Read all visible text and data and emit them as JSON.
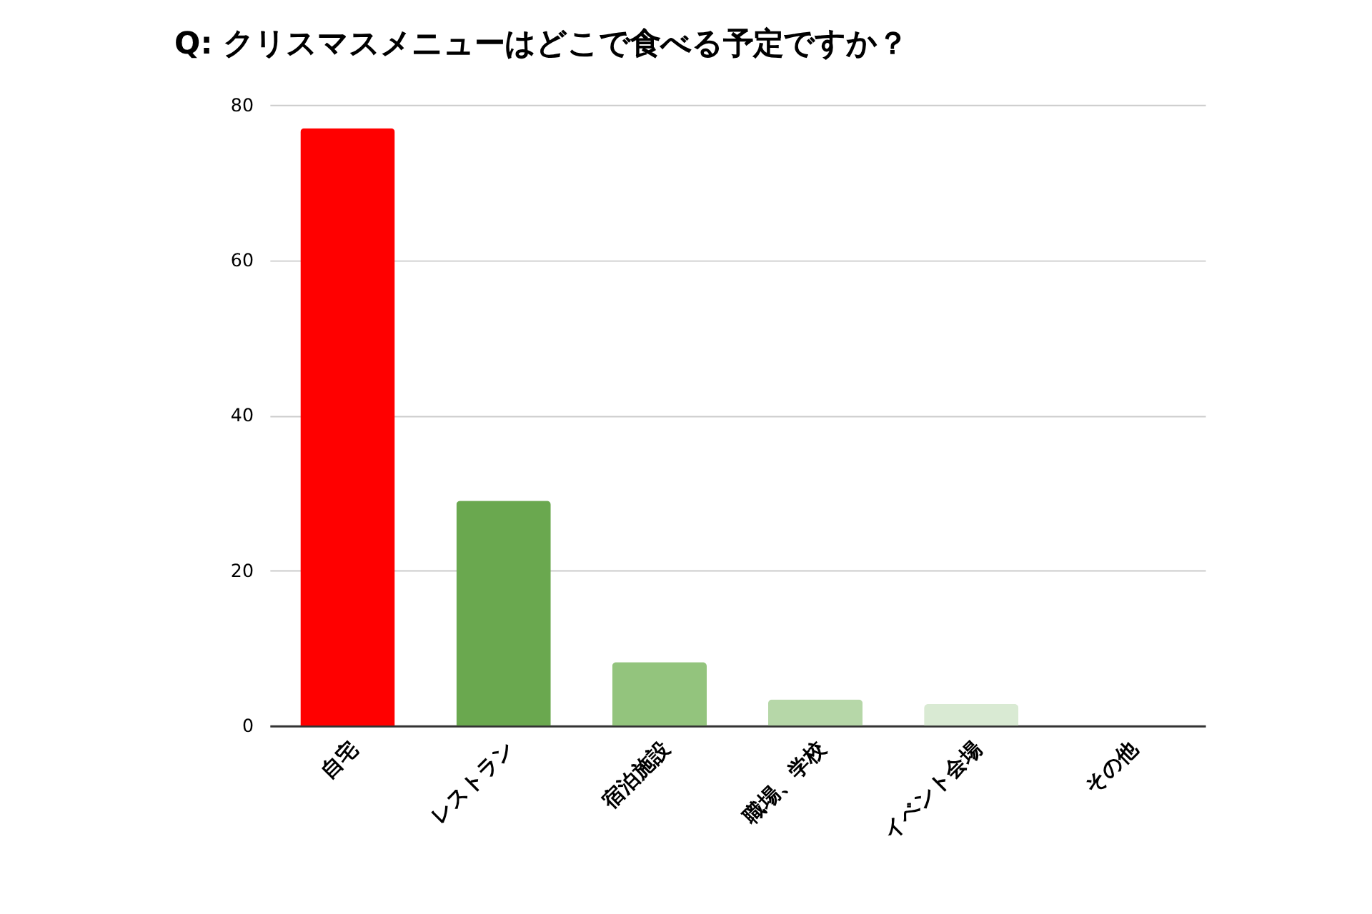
{
  "chart_data": {
    "type": "bar",
    "title": "Q: クリスマスメニューはどこで食べる予定ですか？",
    "categories": [
      "自宅",
      "レストラン",
      "宿泊施設",
      "職場、学校",
      "イベント会場",
      "その他"
    ],
    "values": [
      77,
      29,
      8.2,
      3.4,
      2.8,
      0
    ],
    "colors": [
      "#ff0000",
      "#6aa84f",
      "#93c47d",
      "#b6d7a8",
      "#d9ead3",
      "#d9ead3"
    ],
    "ylim": [
      0,
      80
    ],
    "yticks": [
      0,
      20,
      40,
      60,
      80
    ],
    "grid": "y"
  }
}
